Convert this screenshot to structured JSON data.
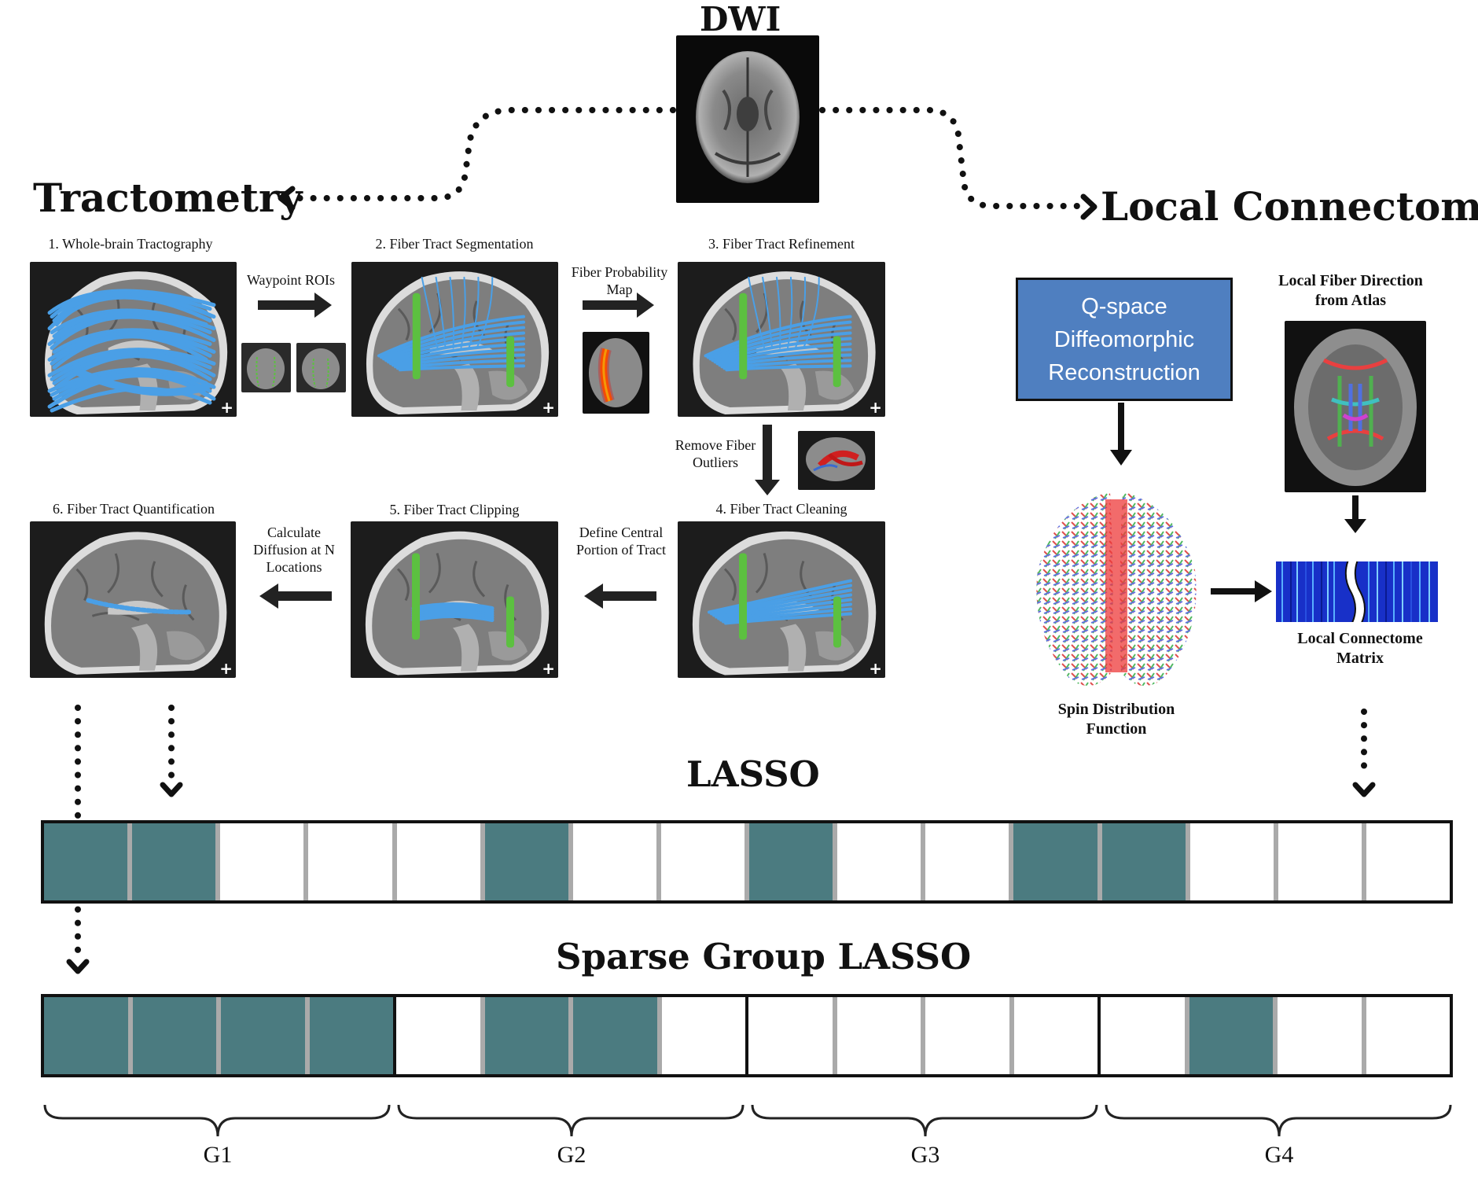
{
  "dwi": {
    "title": "DWI"
  },
  "tractometry": {
    "title": "Tractometry",
    "steps": [
      {
        "title": "1. Whole-brain Tractography",
        "fiber": "whole"
      },
      {
        "title": "2. Fiber Tract Segmentation",
        "fiber": "segment"
      },
      {
        "title": "3. Fiber Tract Refinement",
        "fiber": "segment"
      },
      {
        "title": "4. Fiber Tract Cleaning",
        "fiber": "clean"
      },
      {
        "title": "5. Fiber Tract Clipping",
        "fiber": "clip"
      },
      {
        "title": "6. Fiber Tract Quantification",
        "fiber": "quant"
      }
    ],
    "operations": {
      "waypoint": "Waypoint ROIs",
      "probability": "Fiber Probability Map",
      "outliers": "Remove Fiber Outliers",
      "central": "Define Central Portion of Tract",
      "diffusion": "Calculate Diffusion at N Locations"
    },
    "plus_sign": "+"
  },
  "local_connectome": {
    "title": "Local Connectome",
    "qspace_lines": [
      "Q-space",
      "Diffeomorphic",
      "Reconstruction"
    ],
    "atlas_label": "Local Fiber Direction from Atlas",
    "sdf_label": "Spin Distribution Function",
    "matrix_label": "Local Connectome Matrix"
  },
  "lasso": {
    "title": "LASSO",
    "selected": [
      1,
      1,
      0,
      0,
      0,
      1,
      0,
      0,
      1,
      0,
      0,
      1,
      1,
      0,
      0,
      0
    ]
  },
  "sparse_group_lasso": {
    "title": "Sparse Group LASSO",
    "selected": [
      1,
      1,
      1,
      1,
      0,
      1,
      1,
      0,
      0,
      0,
      0,
      0,
      0,
      1,
      0,
      0
    ],
    "group_size": 4,
    "groups": [
      "G1",
      "G2",
      "G3",
      "G4"
    ]
  },
  "colors": {
    "selected_coefficient": "#4b7b80",
    "fiber_blue": "#4a9fe6",
    "roi_green": "#5cc040",
    "qspace_box": "#4f7fc0"
  }
}
